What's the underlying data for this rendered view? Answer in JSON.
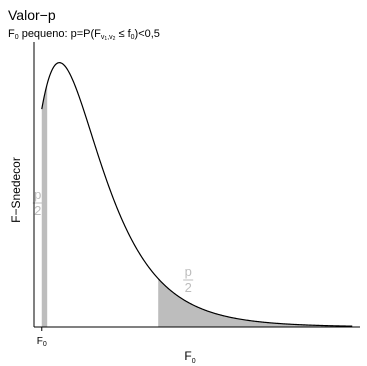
{
  "chart_data": {
    "type": "area",
    "title": "Valor−p",
    "subtitle": {
      "prefix": "F",
      "prefix_sub": "0",
      "text1": " pequeno: p=P(F",
      "sub_v": "v",
      "sub_1": "1",
      "sub_sep": ",v",
      "sub_2": "2",
      "text2": " ≤ f",
      "f_sub": "0",
      "text3": ")<0,5"
    },
    "xlabel": {
      "main": "F",
      "sub": "0"
    },
    "ylabel": "F−Snedecor",
    "ticks": [
      {
        "x": 0.5,
        "main": "F",
        "sub": "0"
      }
    ],
    "distribution": {
      "name": "F",
      "df1": 10,
      "df2": 20
    },
    "xlim": [
      0.4,
      4.6
    ],
    "ylim": [
      0,
      0.9
    ],
    "shaded_regions": [
      {
        "from": 0.5,
        "to": 0.57,
        "label_num": "p",
        "label_den": "2",
        "color": "#bdbdbd"
      },
      {
        "from": 2.0,
        "to": 4.5,
        "label_num": "p",
        "label_den": "2",
        "color": "#bdbdbd"
      }
    ],
    "grid": false,
    "legend": "none"
  }
}
